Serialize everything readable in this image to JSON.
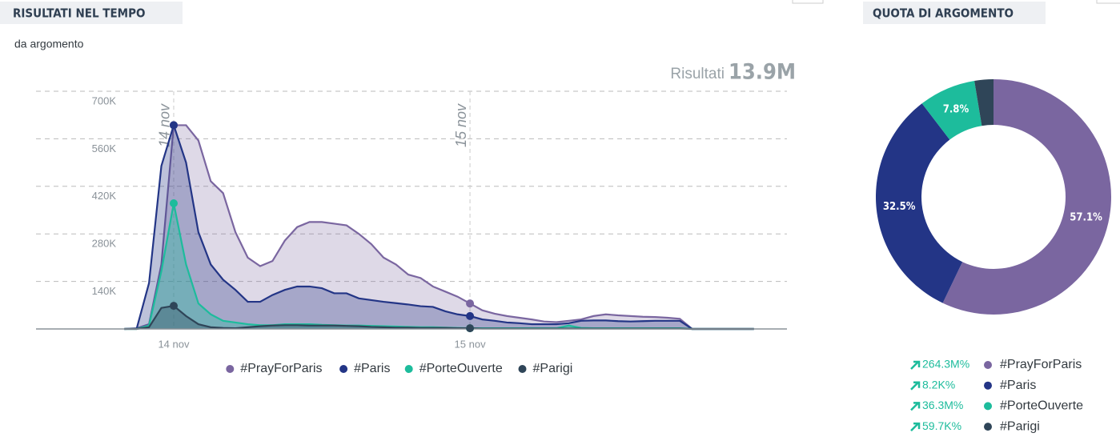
{
  "chart_data": [
    {
      "type": "area",
      "title": "RISULTATI NEL TEMPO",
      "subtitle": "da argomento",
      "total_label": "Risultati",
      "total": "13.9M",
      "categories": [
        null,
        null,
        null,
        null,
        "14 nov",
        null,
        null,
        null,
        null,
        null,
        null,
        null,
        null,
        null,
        null,
        null,
        null,
        null,
        null,
        null,
        null,
        null,
        null,
        null,
        null,
        null,
        null,
        null,
        "15 nov",
        null,
        null,
        null,
        null,
        null,
        null,
        null,
        null,
        null,
        null,
        null,
        null,
        null,
        null,
        null,
        null,
        null,
        null,
        null,
        null,
        null,
        null,
        null
      ],
      "series": [
        {
          "name": "#PrayForParis",
          "color": "#7a66a0",
          "values": [
            0,
            2000,
            14000,
            190000,
            600000,
            600000,
            555000,
            435000,
            400000,
            285000,
            210000,
            185000,
            200000,
            260000,
            300000,
            315000,
            315000,
            310000,
            305000,
            280000,
            250000,
            210000,
            190000,
            160000,
            150000,
            125000,
            110000,
            95000,
            75000,
            55000,
            45000,
            38000,
            33000,
            28000,
            22000,
            20000,
            24000,
            28000,
            38000,
            43000,
            40000,
            38000,
            36000,
            35000,
            33000,
            30000,
            0,
            0,
            0,
            0,
            0,
            0
          ]
        },
        {
          "name": "#Paris",
          "color": "#233586",
          "values": [
            0,
            1000,
            135000,
            480000,
            600000,
            490000,
            285000,
            190000,
            145000,
            115000,
            80000,
            80000,
            100000,
            115000,
            125000,
            125000,
            120000,
            105000,
            105000,
            90000,
            85000,
            80000,
            76000,
            72000,
            67000,
            65000,
            52000,
            43000,
            38000,
            28000,
            24000,
            19000,
            17000,
            14000,
            14000,
            14000,
            17000,
            24000,
            25000,
            25000,
            23000,
            22000,
            23000,
            24000,
            24000,
            24000,
            0,
            0,
            0,
            0,
            0,
            0
          ]
        },
        {
          "name": "#PorteOuverte",
          "color": "#1dbc9c",
          "values": [
            0,
            0,
            10000,
            170000,
            370000,
            190000,
            75000,
            43000,
            24000,
            19000,
            14000,
            11000,
            11000,
            14000,
            14000,
            14000,
            12000,
            11000,
            10000,
            10000,
            9000,
            8000,
            7000,
            6000,
            5000,
            5000,
            4000,
            3000,
            2000,
            2000,
            2000,
            2000,
            2000,
            2000,
            2000,
            2000,
            10000,
            3000,
            2000,
            2000,
            2000,
            2000,
            2000,
            2000,
            2000,
            2000,
            0,
            0,
            0,
            0,
            0,
            0
          ]
        },
        {
          "name": "#Parigi",
          "color": "#2f4558",
          "values": [
            0,
            0,
            5000,
            62000,
            68000,
            38000,
            14000,
            5000,
            3000,
            2000,
            5000,
            8000,
            10000,
            11000,
            11000,
            10000,
            10000,
            10000,
            9000,
            8000,
            6000,
            5000,
            4000,
            4000,
            3000,
            3000,
            3000,
            2000,
            2000,
            1000,
            1000,
            1000,
            1000,
            1000,
            1000,
            1000,
            1000,
            1000,
            1000,
            1000,
            1000,
            1000,
            1000,
            1000,
            1000,
            1000,
            0,
            0,
            0,
            0,
            0,
            0
          ]
        }
      ],
      "ylim": [
        0,
        700000
      ],
      "yticks": [
        {
          "value": 140000,
          "label": "140K"
        },
        {
          "value": 280000,
          "label": "280K"
        },
        {
          "value": 420000,
          "label": "420K"
        },
        {
          "value": 560000,
          "label": "560K"
        },
        {
          "value": 700000,
          "label": "700K"
        }
      ],
      "grid": true,
      "legend": "bottom"
    },
    {
      "type": "donut",
      "title": "QUOTA DI ARGOMENTO",
      "categories": [
        "#PrayForParis",
        "#Paris",
        "#PorteOuverte",
        "#Parigi"
      ],
      "values": [
        57.1,
        32.5,
        7.8,
        2.6
      ],
      "value_labels": [
        "57.1%",
        "32.5%",
        "7.8%",
        null
      ],
      "colors": [
        "#7a66a0",
        "#233586",
        "#1dbc9c",
        "#2f4558"
      ],
      "changes": [
        "264.3M%",
        "8.2K%",
        "36.3M%",
        "59.7K%"
      ]
    }
  ]
}
